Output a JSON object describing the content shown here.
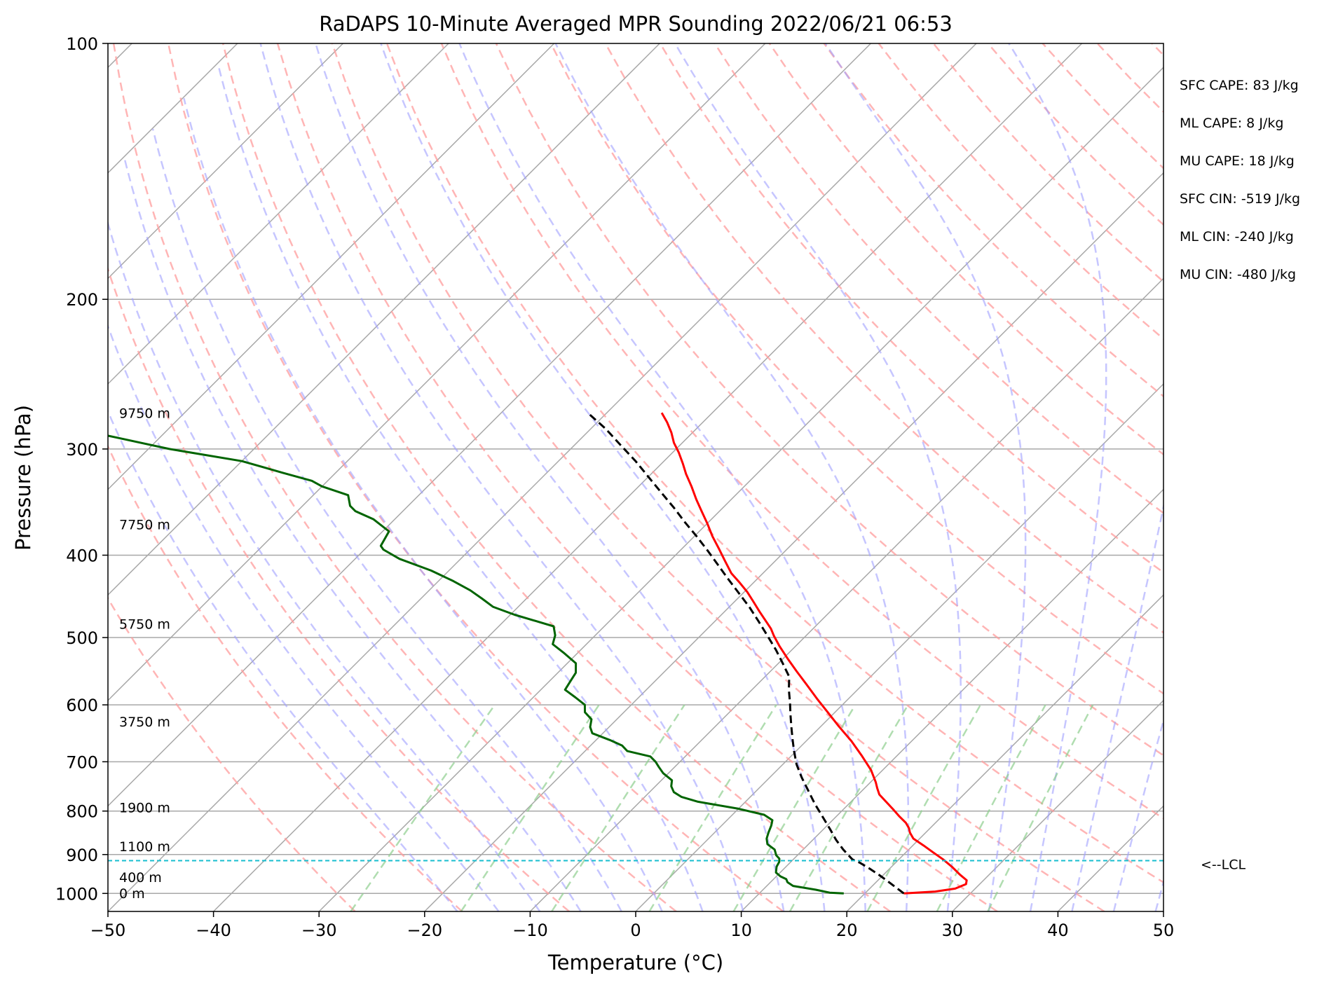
{
  "chart_data": {
    "type": "line",
    "subtype": "skew-T log-p sounding",
    "title": "RaDAPS 10-Minute Averaged MPR Sounding 2022/06/21 06:53",
    "xlabel": "Temperature (°C)",
    "ylabel": "Pressure (hPa)",
    "xlim": [
      -50,
      50
    ],
    "ylim": [
      1050,
      100
    ],
    "y_scale": "log",
    "x_ticks": [
      "−50",
      "−40",
      "−30",
      "−20",
      "−10",
      "0",
      "10",
      "20",
      "30",
      "40",
      "50"
    ],
    "y_ticks": [
      "100",
      "200",
      "300",
      "400",
      "500",
      "600",
      "700",
      "800",
      "900",
      "1000"
    ],
    "grid": true,
    "indices": [
      "SFC CAPE: 83 J/kg",
      "ML CAPE: 8 J/kg",
      "MU CAPE: 18 J/kg",
      "SFC CIN: -519 J/kg",
      "ML CIN: -240 J/kg",
      "MU CIN: -480 J/kg"
    ],
    "lcl": {
      "label": "<--LCL",
      "pressure": 915
    },
    "height_labels": [
      {
        "text": "9750 m",
        "pressure": 272
      },
      {
        "text": "7750 m",
        "pressure": 368
      },
      {
        "text": "5750 m",
        "pressure": 482
      },
      {
        "text": "3750 m",
        "pressure": 628
      },
      {
        "text": "1900 m",
        "pressure": 792
      },
      {
        "text": "1100 m",
        "pressure": 880
      },
      {
        "text": "400 m",
        "pressure": 957
      },
      {
        "text": "0 m",
        "pressure": 999
      }
    ],
    "series": [
      {
        "color": "#ff0000",
        "style": "solid",
        "points": [
          [
            23.7,
            1000
          ],
          [
            26.5,
            995
          ],
          [
            28.1,
            987
          ],
          [
            28.7,
            975
          ],
          [
            28.4,
            965
          ],
          [
            27.2,
            950
          ],
          [
            25.7,
            930
          ],
          [
            24.2,
            912
          ],
          [
            22.6,
            895
          ],
          [
            21.0,
            878
          ],
          [
            19.4,
            862
          ],
          [
            18.5,
            848
          ],
          [
            18.0,
            838
          ],
          [
            17.2,
            826
          ],
          [
            16.0,
            812
          ],
          [
            14.6,
            795
          ],
          [
            12.0,
            765
          ],
          [
            11.2,
            752
          ],
          [
            10.5,
            740
          ],
          [
            8.9,
            716
          ],
          [
            6.6,
            688
          ],
          [
            4.3,
            662
          ],
          [
            1.7,
            636
          ],
          [
            -0.7,
            612
          ],
          [
            -3.0,
            590
          ],
          [
            -5.3,
            568
          ],
          [
            -7.5,
            548
          ],
          [
            -9.5,
            530
          ],
          [
            -11.5,
            512
          ],
          [
            -13.0,
            498
          ],
          [
            -14.0,
            488
          ],
          [
            -16.7,
            466
          ],
          [
            -18.3,
            453
          ],
          [
            -19.7,
            442
          ],
          [
            -21.3,
            431
          ],
          [
            -23.0,
            420
          ],
          [
            -24.8,
            406
          ],
          [
            -26.5,
            393
          ],
          [
            -28.3,
            380
          ],
          [
            -30.0,
            367
          ],
          [
            -31.7,
            355
          ],
          [
            -33.3,
            344
          ],
          [
            -35.0,
            332
          ],
          [
            -36.7,
            321
          ],
          [
            -38.0,
            312
          ],
          [
            -39.4,
            303
          ],
          [
            -40.8,
            295
          ],
          [
            -42.0,
            287
          ],
          [
            -43.4,
            279
          ],
          [
            -44.8,
            272
          ]
        ]
      },
      {
        "color": "#006400",
        "style": "solid",
        "points": [
          [
            18.0,
            1000
          ],
          [
            16.6,
            998
          ],
          [
            15.0,
            990
          ],
          [
            12.5,
            980
          ],
          [
            11.6,
            970
          ],
          [
            11.2,
            962
          ],
          [
            10.4,
            955
          ],
          [
            9.6,
            945
          ],
          [
            9.1,
            930
          ],
          [
            8.9,
            918
          ],
          [
            8.6,
            910
          ],
          [
            8.0,
            902
          ],
          [
            7.3,
            888
          ],
          [
            6.1,
            875
          ],
          [
            5.5,
            862
          ],
          [
            5.1,
            848
          ],
          [
            4.7,
            832
          ],
          [
            4.3,
            820
          ],
          [
            3.0,
            808
          ],
          [
            0.0,
            795
          ],
          [
            -4.5,
            780
          ],
          [
            -6.5,
            770
          ],
          [
            -7.7,
            760
          ],
          [
            -8.5,
            748
          ],
          [
            -9.0,
            736
          ],
          [
            -10.5,
            722
          ],
          [
            -11.5,
            710
          ],
          [
            -12.3,
            700
          ],
          [
            -13.3,
            690
          ],
          [
            -16.0,
            680
          ],
          [
            -17.0,
            670
          ],
          [
            -18.7,
            660
          ],
          [
            -21.0,
            648
          ],
          [
            -21.8,
            637
          ],
          [
            -22.4,
            624
          ],
          [
            -23.7,
            612
          ],
          [
            -24.4,
            600
          ],
          [
            -26.0,
            588
          ],
          [
            -27.7,
            576
          ],
          [
            -28.0,
            563
          ],
          [
            -28.3,
            550
          ],
          [
            -29.2,
            536
          ],
          [
            -31.2,
            522
          ],
          [
            -33.2,
            509
          ],
          [
            -33.8,
            497
          ],
          [
            -34.8,
            485
          ],
          [
            -39.6,
            470
          ],
          [
            -42.4,
            460
          ],
          [
            -44.2,
            450
          ],
          [
            -46.1,
            440
          ],
          [
            -48.6,
            429
          ],
          [
            -51.7,
            417
          ],
          [
            -55.8,
            404
          ],
          [
            -58.2,
            394
          ],
          [
            -58.8,
            390
          ],
          [
            -59.4,
            375
          ],
          [
            -62.0,
            363
          ],
          [
            -64.5,
            355
          ],
          [
            -65.5,
            350
          ],
          [
            -66.7,
            340
          ],
          [
            -70.0,
            332
          ],
          [
            -71.5,
            327
          ],
          [
            -75.0,
            320
          ],
          [
            -80.0,
            310
          ],
          [
            -88.0,
            300
          ],
          [
            -94.0,
            291
          ],
          [
            -101.0,
            281
          ],
          [
            -103.0,
            277
          ]
        ]
      },
      {
        "color": "#000000",
        "style": "dashed",
        "points": [
          [
            23.7,
            1000
          ],
          [
            20.8,
            965
          ],
          [
            19.5,
            950
          ],
          [
            18.1,
            935
          ],
          [
            16.6,
            920
          ],
          [
            15.6,
            912
          ],
          [
            13.8,
            888
          ],
          [
            12.2,
            865
          ],
          [
            10.6,
            840
          ],
          [
            8.7,
            812
          ],
          [
            6.8,
            785
          ],
          [
            4.9,
            757
          ],
          [
            3.0,
            730
          ],
          [
            1.3,
            705
          ],
          [
            -0.2,
            680
          ],
          [
            -1.5,
            658
          ],
          [
            -2.8,
            636
          ],
          [
            -4.0,
            616
          ],
          [
            -5.2,
            596
          ],
          [
            -6.5,
            576
          ],
          [
            -7.7,
            556
          ],
          [
            -9.6,
            536
          ],
          [
            -11.5,
            517
          ],
          [
            -13.6,
            498
          ],
          [
            -15.8,
            479
          ],
          [
            -18.0,
            461
          ],
          [
            -20.3,
            444
          ],
          [
            -22.7,
            427
          ],
          [
            -25.0,
            411
          ],
          [
            -27.4,
            395
          ],
          [
            -29.8,
            380
          ],
          [
            -32.2,
            366
          ],
          [
            -34.6,
            352
          ],
          [
            -37.2,
            338
          ],
          [
            -39.9,
            324
          ],
          [
            -42.7,
            310
          ],
          [
            -45.6,
            297
          ],
          [
            -48.6,
            284
          ],
          [
            -51.8,
            272
          ]
        ]
      }
    ]
  }
}
